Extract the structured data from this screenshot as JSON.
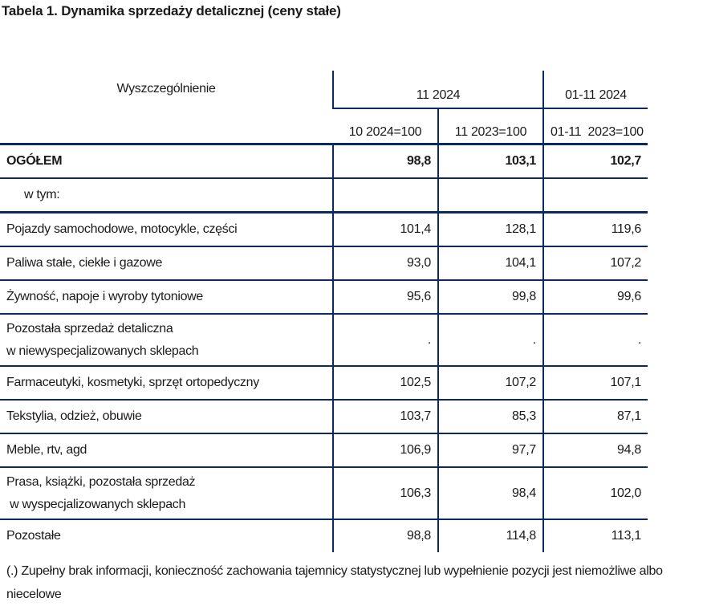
{
  "title": "Tabela 1. Dynamika sprzedaży detalicznej (ceny stałe)",
  "header": {
    "label_col": "Wyszczególnienie",
    "group1": "11 2024",
    "group2": "01-11 2024",
    "sub1": "10 2024=100",
    "sub2": "11 2023=100",
    "sub3": "01-11  2023=100"
  },
  "rows": [
    {
      "label": "OGÓŁEM",
      "v1": "98,8",
      "v2": "103,1",
      "v3": "102,7"
    },
    {
      "label": "w tym:",
      "v1": "",
      "v2": "",
      "v3": ""
    },
    {
      "label": "Pojazdy samochodowe, motocykle, części",
      "v1": "101,4",
      "v2": "128,1",
      "v3": "119,6"
    },
    {
      "label": "Paliwa stałe, ciekłe i gazowe",
      "v1": "93,0",
      "v2": "104,1",
      "v3": "107,2"
    },
    {
      "label": "Żywność, napoje i wyroby tytoniowe",
      "v1": "95,6",
      "v2": "99,8",
      "v3": "99,6"
    },
    {
      "label": "Pozostała sprzedaż detaliczna",
      "label2": "w niewyspecjalizowanych sklepach",
      "v1": ".",
      "v2": ".",
      "v3": "."
    },
    {
      "label": "Farmaceutyki, kosmetyki, sprzęt ortopedyczny",
      "v1": "102,5",
      "v2": "107,2",
      "v3": "107,1"
    },
    {
      "label": "Tekstylia, odzież, obuwie",
      "v1": "103,7",
      "v2": "85,3",
      "v3": "87,1"
    },
    {
      "label": "Meble, rtv, agd",
      "v1": "106,9",
      "v2": "97,7",
      "v3": "94,8"
    },
    {
      "label": "Prasa, książki, pozostała sprzedaż",
      "label2": " w wyspecjalizowanych sklepach",
      "v1": "106,3",
      "v2": "98,4",
      "v3": "102,0"
    },
    {
      "label": "Pozostałe",
      "v1": "98,8",
      "v2": "114,8",
      "v3": "113,1"
    }
  ],
  "footnote": "(.) Zupełny brak informacji, konieczność zachowania tajemnicy statystycznej lub wypełnienie pozycji jest niemożliwe albo niecelowe",
  "colors": {
    "rule": "#0c2a62"
  }
}
